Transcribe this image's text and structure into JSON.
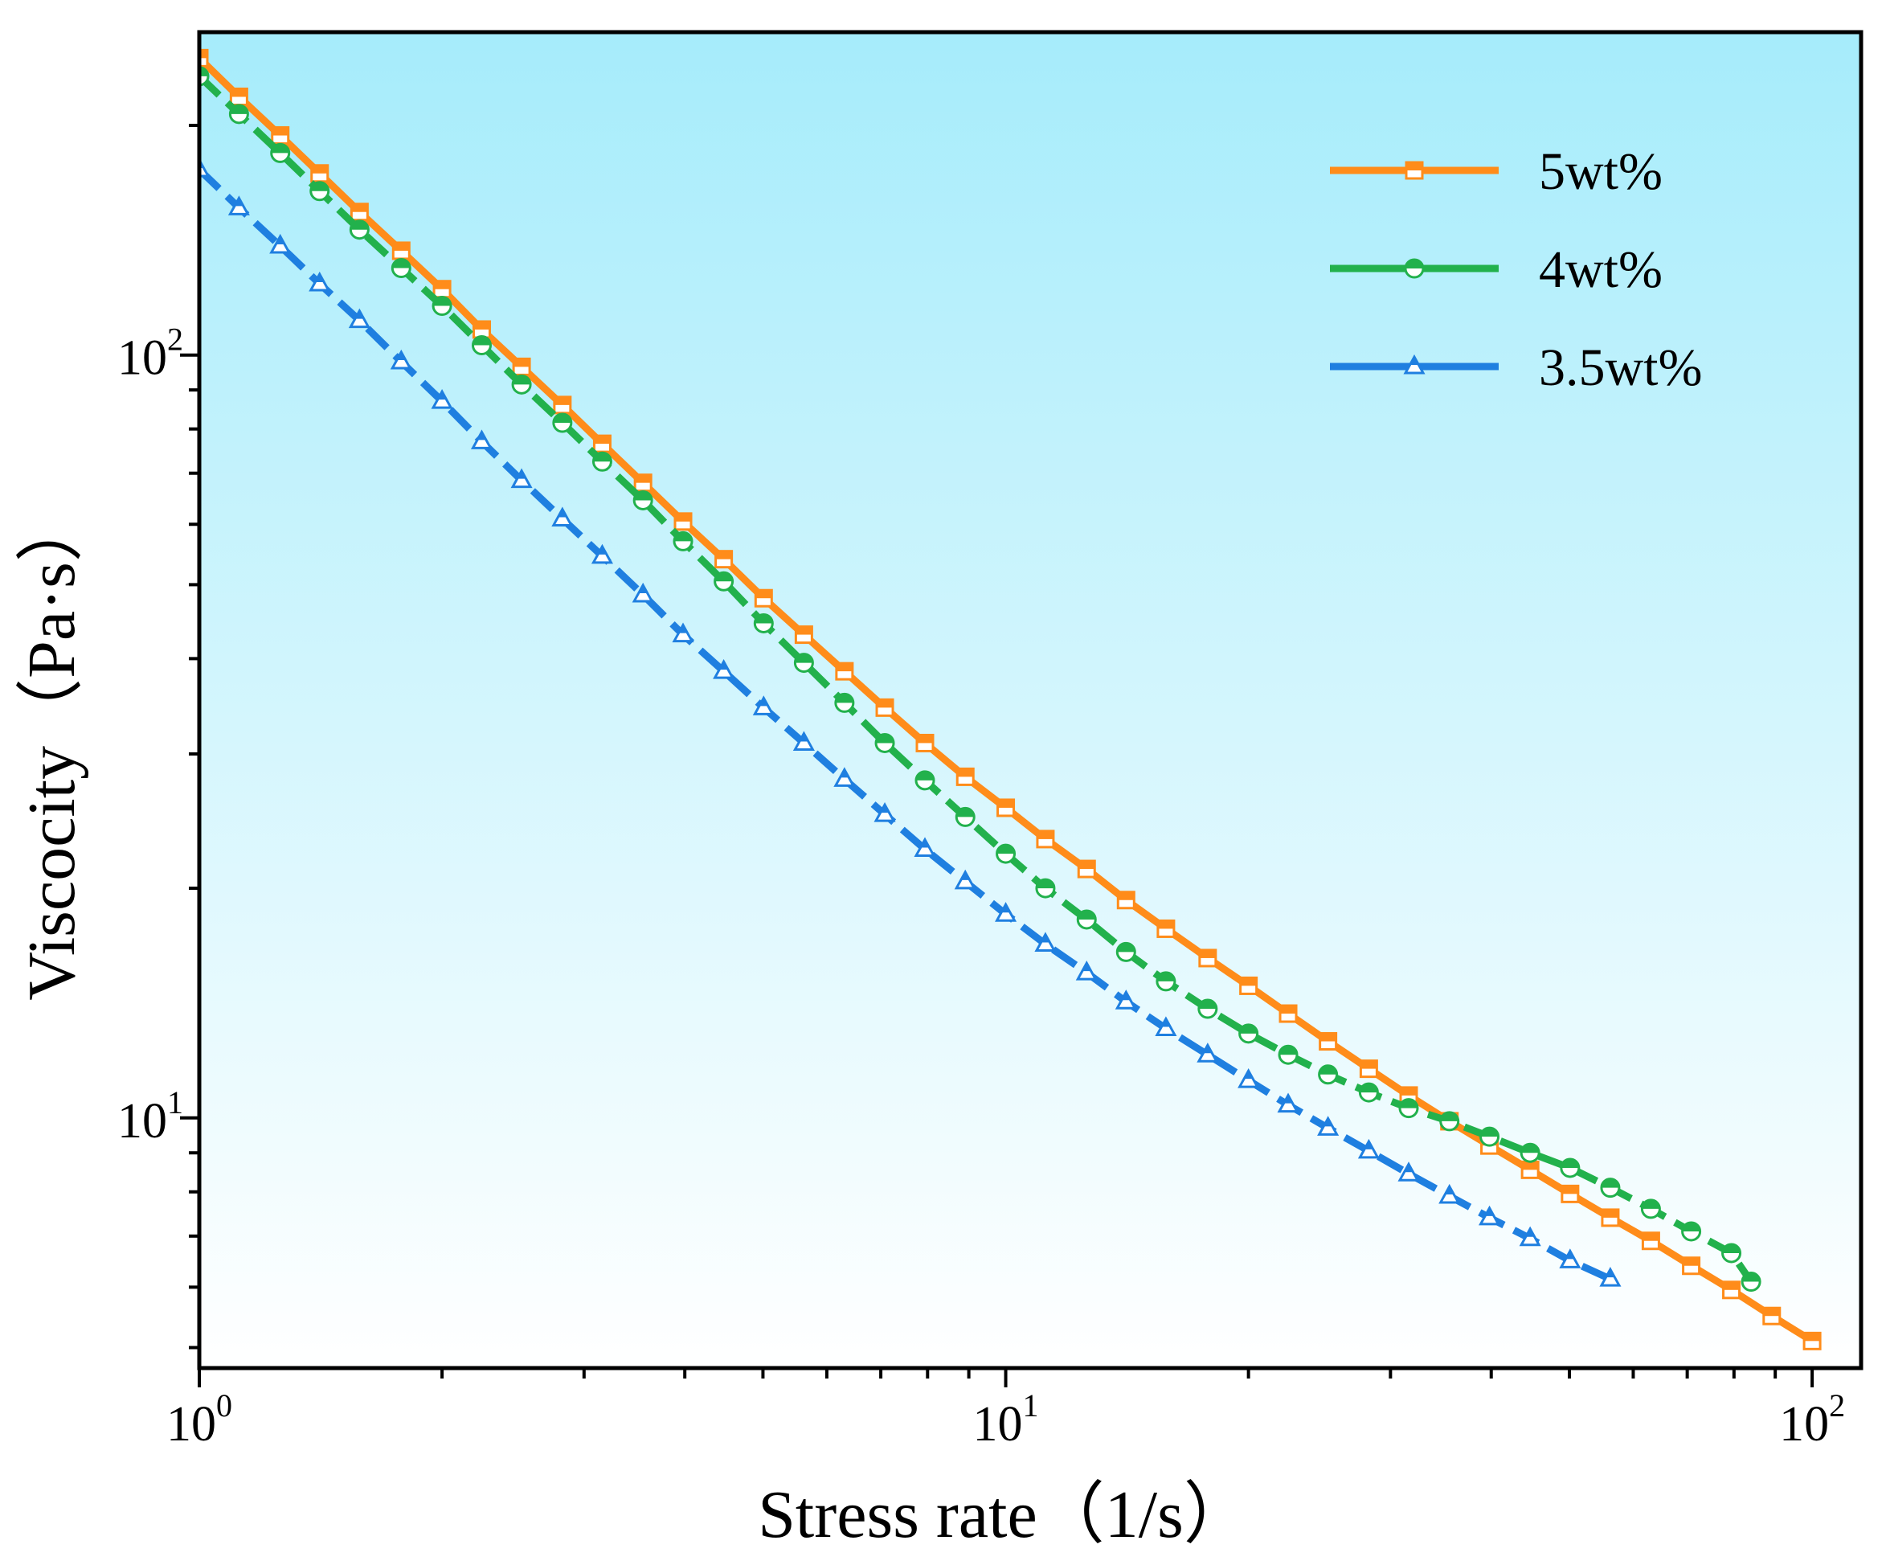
{
  "chart_data": {
    "type": "line",
    "title": "",
    "xlabel": "Stress rate（1/s）",
    "ylabel": "Viscocity（Pa·s）",
    "xscale": "log",
    "yscale": "log",
    "xlim": [
      1,
      115
    ],
    "ylim": [
      4.7,
      265
    ],
    "xticks": [
      {
        "value": 1,
        "base": "10",
        "exp": "0"
      },
      {
        "value": 10,
        "base": "10",
        "exp": "1"
      },
      {
        "value": 100,
        "base": "10",
        "exp": "2"
      }
    ],
    "yticks": [
      {
        "value": 10,
        "base": "10",
        "exp": "1"
      },
      {
        "value": 100,
        "base": "10",
        "exp": "2"
      }
    ],
    "background_gradient": {
      "top": "#a6ecfb",
      "bottom": "#ffffff"
    },
    "legend_position": "top-right",
    "series": [
      {
        "name": "5wt%",
        "color": "#ff8c1a",
        "marker": "square",
        "line_style": "solid",
        "x": [
          1.0,
          1.12,
          1.26,
          1.41,
          1.58,
          1.78,
          2.0,
          2.24,
          2.51,
          2.82,
          3.16,
          3.55,
          3.98,
          4.47,
          5.01,
          5.62,
          6.31,
          7.08,
          7.94,
          8.91,
          10.0,
          11.2,
          12.6,
          14.1,
          15.8,
          17.8,
          20.0,
          22.4,
          25.1,
          28.2,
          31.6,
          35.5,
          39.8,
          44.7,
          50.1,
          56.2,
          63.1,
          70.8,
          79.4,
          89.1,
          100.0
        ],
        "y": [
          245,
          218,
          194,
          173,
          154,
          137,
          122,
          108,
          96.5,
          86,
          76.5,
          68,
          60.5,
          54,
          48,
          43,
          38.5,
          34.5,
          31,
          28,
          25.5,
          23.2,
          21.2,
          19.3,
          17.7,
          16.2,
          14.9,
          13.7,
          12.6,
          11.6,
          10.7,
          9.9,
          9.2,
          8.55,
          7.95,
          7.4,
          6.9,
          6.4,
          5.95,
          5.5,
          5.1
        ]
      },
      {
        "name": "4wt%",
        "color": "#22b14c",
        "marker": "circle",
        "line_style": "dashed",
        "x": [
          1.0,
          1.12,
          1.26,
          1.41,
          1.58,
          1.78,
          2.0,
          2.24,
          2.51,
          2.82,
          3.16,
          3.55,
          3.98,
          4.47,
          5.01,
          5.62,
          6.31,
          7.08,
          7.94,
          8.91,
          10.0,
          11.2,
          12.6,
          14.1,
          15.8,
          17.8,
          20.0,
          22.4,
          25.1,
          28.2,
          31.6,
          35.5,
          39.8,
          44.7,
          50.1,
          56.2,
          63.1,
          70.8,
          79.4,
          84.0
        ],
        "y": [
          232,
          207,
          184,
          164,
          146,
          130,
          116,
          103,
          91.5,
          81.5,
          72.5,
          64.5,
          57,
          50.5,
          44.5,
          39.5,
          35,
          31,
          27.7,
          24.8,
          22.2,
          20,
          18.2,
          16.5,
          15.1,
          13.9,
          12.9,
          12.1,
          11.4,
          10.8,
          10.3,
          9.9,
          9.45,
          9.0,
          8.6,
          8.1,
          7.6,
          7.1,
          6.65,
          6.1
        ]
      },
      {
        "name": "3.5wt%",
        "color": "#1f7fe0",
        "marker": "triangle",
        "line_style": "dashed",
        "x": [
          1.0,
          1.12,
          1.26,
          1.41,
          1.58,
          1.78,
          2.0,
          2.24,
          2.51,
          2.82,
          3.16,
          3.55,
          3.98,
          4.47,
          5.01,
          5.62,
          6.31,
          7.08,
          7.94,
          8.91,
          10.0,
          11.2,
          12.6,
          14.1,
          15.8,
          17.8,
          20.0,
          22.4,
          25.1,
          28.2,
          31.6,
          35.5,
          39.8,
          44.7,
          50.1,
          56.2
        ],
        "y": [
          175,
          156,
          139,
          124,
          111,
          98,
          87,
          77,
          68.5,
          61,
          54.5,
          48.5,
          43,
          38.5,
          34.5,
          31,
          27.8,
          25,
          22.5,
          20.4,
          18.5,
          16.9,
          15.5,
          14.2,
          13.1,
          12.1,
          11.2,
          10.4,
          9.7,
          9.05,
          8.45,
          7.9,
          7.4,
          6.95,
          6.5,
          6.15
        ]
      }
    ]
  }
}
